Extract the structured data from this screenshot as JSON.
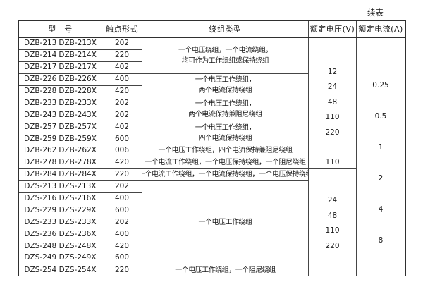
{
  "continued_label": "续表",
  "table": {
    "headers": {
      "model": "型　号",
      "contact": "触点形式",
      "winding": "绕组类型",
      "voltage": "额定电压(V)",
      "current": "额定电流(A)"
    },
    "rows": [
      {
        "model": "DZB-213",
        "model_x": "DZB-213X",
        "contact": "202"
      },
      {
        "model": "DZB-214",
        "model_x": "DZB-214X",
        "contact": "220"
      },
      {
        "model": "DZB-217",
        "model_x": "DZB-217X",
        "contact": "402"
      },
      {
        "model": "DZB-226",
        "model_x": "DZB-226X",
        "contact": "400"
      },
      {
        "model": "DZB-228",
        "model_x": "DZB-228X",
        "contact": "420"
      },
      {
        "model": "DZB-233",
        "model_x": "DZB-233X",
        "contact": "202"
      },
      {
        "model": "DZB-243",
        "model_x": "DZB-243X",
        "contact": "202"
      },
      {
        "model": "DZB-257",
        "model_x": "DZB-257X",
        "contact": "402"
      },
      {
        "model": "DZB-259",
        "model_x": "DZB-259X",
        "contact": "600"
      },
      {
        "model": "DZB-262",
        "model_x": "DZB-262X",
        "contact": "006"
      },
      {
        "model": "DZB-278",
        "model_x": "DZB-278X",
        "contact": "420"
      },
      {
        "model": "DZB-284",
        "model_x": "DZB-284X",
        "contact": "220"
      },
      {
        "model": "DZS-213",
        "model_x": "DZS-213X",
        "contact": "202"
      },
      {
        "model": "DZS-216",
        "model_x": "DZS-216X",
        "contact": "400"
      },
      {
        "model": "DZS-229",
        "model_x": "DZS-229X",
        "contact": "600"
      },
      {
        "model": "DZS-233",
        "model_x": "DZS-233X",
        "contact": "202"
      },
      {
        "model": "DZS-236",
        "model_x": "DZS-236X",
        "contact": "400"
      },
      {
        "model": "DZS-248",
        "model_x": "DZS-248X",
        "contact": "420"
      },
      {
        "model": "DZS-249",
        "model_x": "DZS-249X",
        "contact": "600"
      },
      {
        "model": "DZS-254",
        "model_x": "DZS-254X",
        "contact": "220"
      }
    ],
    "winding_cells": [
      {
        "rows": [
          1,
          3
        ],
        "lines": [
          "一个电压绕组，一个电流绕组，",
          "均可作为工作绕组或保持绕组"
        ]
      },
      {
        "rows": [
          4,
          5
        ],
        "lines": [
          "一个电压工作绕组，",
          "两个电流保持绕组"
        ]
      },
      {
        "rows": [
          6,
          7
        ],
        "lines": [
          "一个电压工作绕组，",
          "两个电流保持兼阻尼绕组"
        ]
      },
      {
        "rows": [
          8,
          9
        ],
        "lines": [
          "一个电压工作绕组，",
          "四个电流保持绕组"
        ]
      },
      {
        "rows": [
          10,
          10
        ],
        "lines": [
          "一个电压工作绕组，四个电流保持兼阻尼绕组"
        ]
      },
      {
        "rows": [
          11,
          11
        ],
        "lines": [
          "一个电流工作绕组，一个电压保持绕组，一个阻尼绕组"
        ]
      },
      {
        "rows": [
          12,
          12
        ],
        "lines": [
          "一个电流工作绕组，一个电流保持绕组，一个电压保持绕组"
        ]
      },
      {
        "rows": [
          13,
          19
        ],
        "lines": [
          "一个电压工作绕组"
        ]
      },
      {
        "rows": [
          20,
          20
        ],
        "lines": [
          "一个电压工作绕组，一个阻尼绕组"
        ]
      }
    ],
    "voltage_cells": [
      {
        "rows": [
          1,
          10
        ],
        "values": [
          "12",
          "24",
          "48",
          "110",
          "220"
        ]
      },
      {
        "rows": [
          11,
          11
        ],
        "values": [
          "110"
        ]
      },
      {
        "rows": [
          12,
          20
        ],
        "values": [
          "24",
          "48",
          "110",
          "220"
        ]
      }
    ],
    "current_cells": [
      {
        "rows": [
          1,
          20
        ],
        "values": [
          "0.25",
          "0.5",
          "1",
          "2",
          "4",
          "8"
        ]
      }
    ]
  }
}
